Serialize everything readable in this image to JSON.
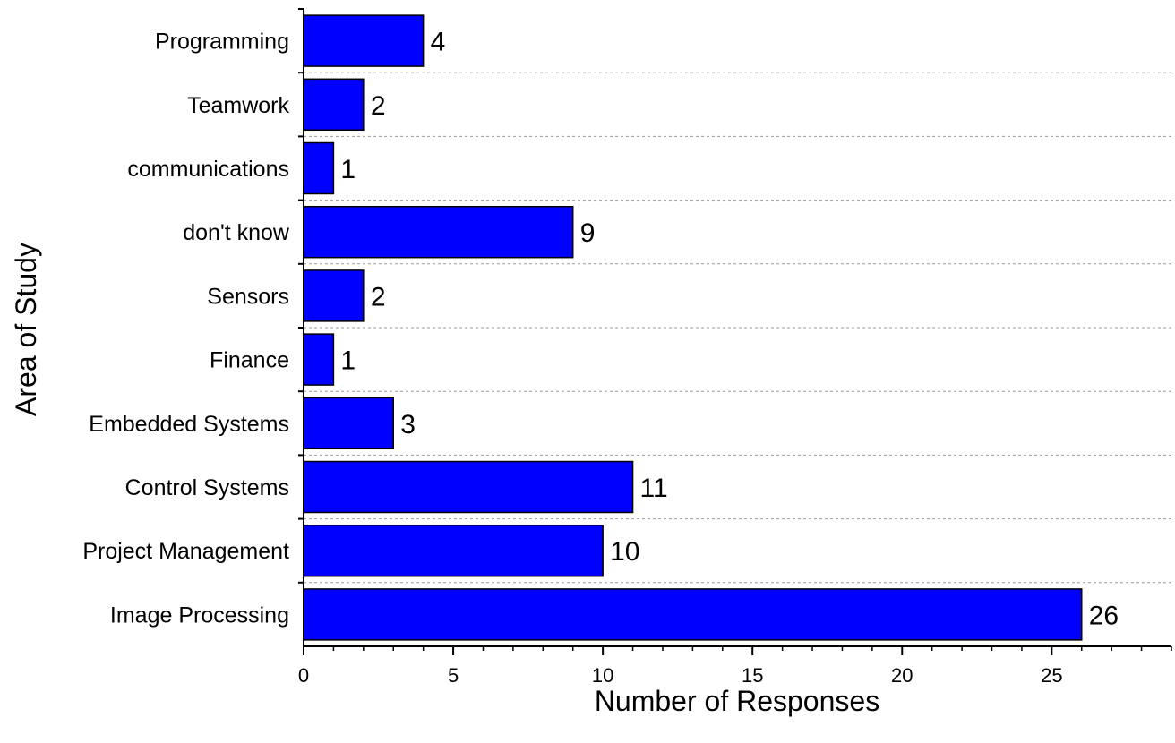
{
  "chart_data": {
    "type": "bar",
    "orientation": "horizontal",
    "title": "",
    "xlabel": "Number of Responses",
    "ylabel": "Area of Study",
    "categories": [
      "Programming",
      "Teamwork",
      "communications",
      "don't know",
      "Sensors",
      "Finance",
      "Embedded Systems",
      "Control Systems",
      "Project Management",
      "Image Processing"
    ],
    "values": [
      4,
      2,
      1,
      9,
      2,
      1,
      3,
      11,
      10,
      26
    ],
    "value_labels": [
      "4",
      "2",
      "1",
      "9",
      "2",
      "1",
      "3",
      "11",
      "10",
      "26"
    ],
    "xlim": [
      0,
      29
    ],
    "xticks": [
      0,
      5,
      10,
      15,
      20,
      25
    ],
    "xtick_labels": [
      "0",
      "5",
      "10",
      "15",
      "20",
      "25"
    ],
    "grid": "horizontal dashed",
    "legend": "none",
    "bar_color": "#0000ff",
    "bar_edge_color": "#000000"
  }
}
